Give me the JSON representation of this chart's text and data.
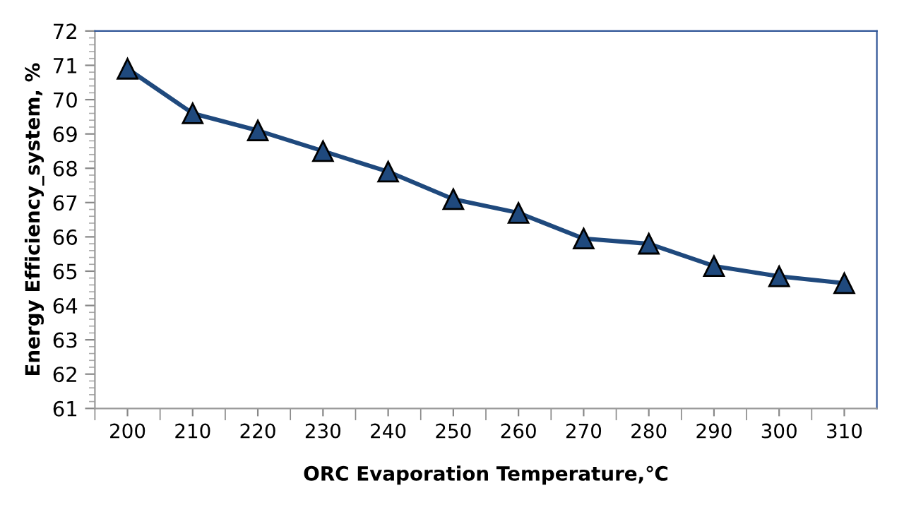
{
  "chart_data": {
    "type": "line",
    "xlabel": "ORC Evaporation Temperature,℃",
    "ylabel": "Energy Efficiency_system, %",
    "categories": [
      "200",
      "210",
      "220",
      "230",
      "240",
      "250",
      "260",
      "270",
      "280",
      "290",
      "300",
      "310"
    ],
    "series": [
      {
        "color": "#1f497d",
        "values": [
          70.9,
          69.6,
          69.1,
          68.5,
          67.9,
          67.1,
          66.7,
          65.95,
          65.8,
          65.15,
          64.85,
          64.65
        ]
      }
    ],
    "ylim": [
      61,
      72
    ],
    "yticks": [
      61,
      62,
      63,
      64,
      65,
      66,
      67,
      68,
      69,
      70,
      71,
      72
    ],
    "marker": "triangle",
    "line_style": "solid",
    "grid": false,
    "legend": false
  }
}
